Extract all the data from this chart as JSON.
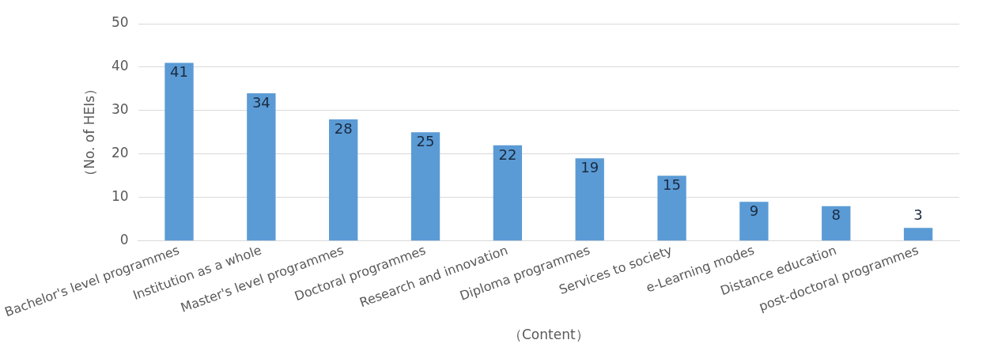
{
  "chart_data": {
    "type": "bar",
    "xlabel": "（Content）",
    "ylabel": "（No. of HEIs）",
    "categories": [
      "Bachelor's level programmes",
      "Institution as a whole",
      "Master's level programmes",
      "Doctoral programmes",
      "Research and innovation",
      "Diploma programmes",
      "Services to society",
      "e-Learning modes",
      "Distance education",
      "post-doctoral programmes"
    ],
    "values": [
      41,
      34,
      28,
      25,
      22,
      19,
      15,
      9,
      8,
      3
    ],
    "color": "#5b9bd5",
    "ylim": [
      0,
      50
    ],
    "yticks": [
      0,
      10,
      20,
      30,
      40,
      50
    ],
    "grid": "y",
    "data_labels": true,
    "legend": false
  }
}
